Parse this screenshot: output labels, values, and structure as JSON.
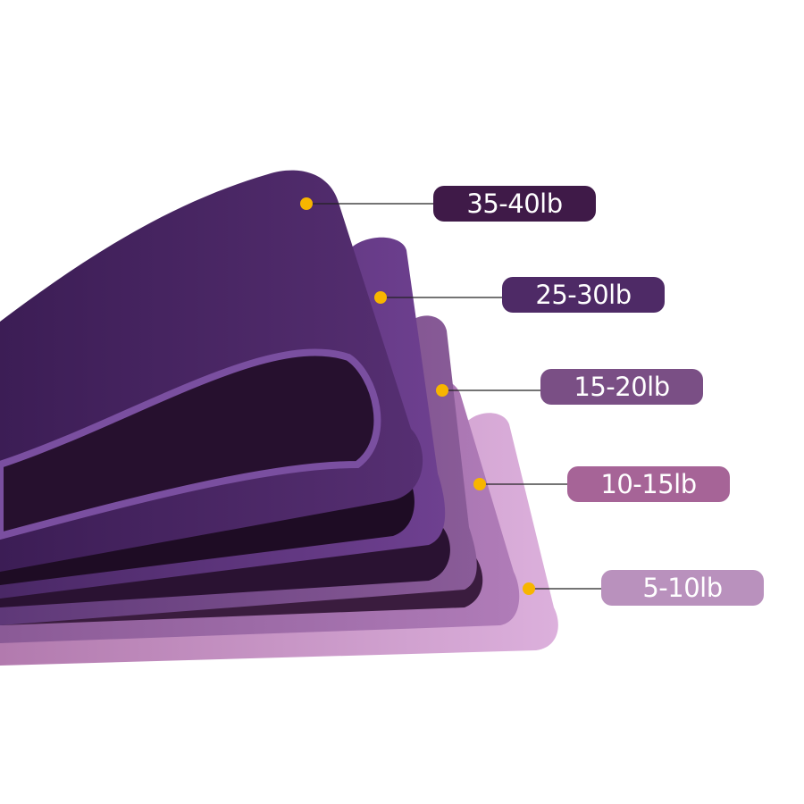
{
  "bands": [
    {
      "label": "35-40lb",
      "color": "#3f1a48",
      "band_color": "#4a2360"
    },
    {
      "label": "25-30lb",
      "color": "#4e2a66",
      "band_color": "#5e347a"
    },
    {
      "label": "15-20lb",
      "color": "#7a4f85",
      "band_color": "#6f4484"
    },
    {
      "label": "10-15lb",
      "color": "#a66497",
      "band_color": "#9a6aa6"
    },
    {
      "label": "5-10lb",
      "color": "#b991bd",
      "band_color": "#c99acc"
    }
  ],
  "marker_color": "#f7b500",
  "leader_color": "#222222"
}
